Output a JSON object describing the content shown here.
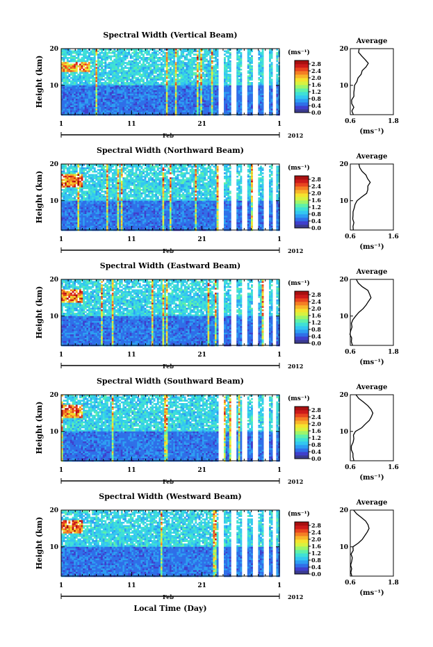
{
  "figure": {
    "xlabel": "Local Time (Day)",
    "month_label": "Feb",
    "year_label": "2012"
  },
  "colorbar": {
    "unit_label": "(ms⁻¹)",
    "ticks": [
      "2.8",
      "2.4",
      "2.0",
      "1.6",
      "1.2",
      "0.8",
      "0.4",
      "0.0"
    ],
    "range": [
      0.0,
      3.0
    ],
    "colors": [
      "#3b3b8f",
      "#3f3fcc",
      "#2f6fe8",
      "#2d9ef2",
      "#33c7f0",
      "#3fe0d6",
      "#5ff0a8",
      "#9df56a",
      "#d8f240",
      "#f5e32e",
      "#f8b52a",
      "#f47f24",
      "#e8451f",
      "#cc1a1a",
      "#a81010"
    ]
  },
  "chart_data": [
    {
      "type": "heatmap",
      "title": "Spectral Width (Vertical Beam)",
      "ylabel": "Height (km)",
      "yticks": [
        "20",
        "10"
      ],
      "xticks": [
        "1",
        "11",
        "21",
        "1"
      ],
      "xlim": [
        1,
        32
      ],
      "ylim": [
        2,
        20
      ],
      "zlim": [
        0.0,
        3.0
      ],
      "profile": {
        "title": "Average",
        "xlabel": "(ms⁻¹)",
        "xticks": [
          "0.6",
          "1.8"
        ],
        "yticks": [
          "20",
          "10"
        ],
        "xlim": [
          0.6,
          1.8
        ],
        "height": [
          2,
          3,
          4,
          5,
          6,
          7,
          8,
          9,
          10,
          11,
          12,
          13,
          14,
          15,
          16,
          17,
          18,
          19,
          20
        ],
        "value": [
          0.7,
          0.66,
          0.68,
          0.65,
          0.66,
          0.68,
          0.67,
          0.7,
          0.72,
          0.8,
          0.84,
          0.9,
          0.96,
          1.05,
          1.08,
          1.02,
          0.94,
          0.86,
          0.82
        ]
      }
    },
    {
      "type": "heatmap",
      "title": "Spectral Width (Northward Beam)",
      "ylabel": "Height (km)",
      "yticks": [
        "20",
        "10"
      ],
      "xticks": [
        "1",
        "11",
        "21",
        "1"
      ],
      "xlim": [
        1,
        32
      ],
      "ylim": [
        2,
        20
      ],
      "zlim": [
        0.0,
        3.0
      ],
      "profile": {
        "title": "Average",
        "xlabel": "(ms⁻¹)",
        "xticks": [
          "0.6",
          "1.6"
        ],
        "yticks": [
          "20",
          "10"
        ],
        "xlim": [
          0.6,
          1.6
        ],
        "height": [
          2,
          3,
          4,
          5,
          6,
          7,
          8,
          9,
          10,
          11,
          12,
          13,
          14,
          15,
          16,
          17,
          18,
          19,
          20
        ],
        "value": [
          0.68,
          0.66,
          0.67,
          0.66,
          0.67,
          0.68,
          0.69,
          0.72,
          0.76,
          0.86,
          0.96,
          1.02,
          1.0,
          1.04,
          0.98,
          0.94,
          0.88,
          0.84,
          0.8
        ]
      }
    },
    {
      "type": "heatmap",
      "title": "Spectral Width (Eastward Beam)",
      "ylabel": "Height (km)",
      "yticks": [
        "20",
        "10"
      ],
      "xticks": [
        "1",
        "11",
        "21",
        "1"
      ],
      "xlim": [
        1,
        32
      ],
      "ylim": [
        2,
        20
      ],
      "zlim": [
        0.0,
        3.0
      ],
      "profile": {
        "title": "Average",
        "xlabel": "(ms⁻¹)",
        "xticks": [
          "0.6",
          "1.8"
        ],
        "yticks": [
          "20",
          "10"
        ],
        "xlim": [
          0.6,
          1.8
        ],
        "height": [
          2,
          3,
          4,
          5,
          6,
          7,
          8,
          9,
          10,
          11,
          12,
          13,
          14,
          15,
          16,
          17,
          18,
          19,
          20
        ],
        "value": [
          0.64,
          0.62,
          0.63,
          0.62,
          0.63,
          0.64,
          0.65,
          0.68,
          0.72,
          0.84,
          0.96,
          1.04,
          1.1,
          1.18,
          1.14,
          1.06,
          0.96,
          0.84,
          0.76
        ]
      }
    },
    {
      "type": "heatmap",
      "title": "Spectral Width (Southward Beam)",
      "ylabel": "Height (km)",
      "yticks": [
        "20",
        "10"
      ],
      "xticks": [
        "1",
        "11",
        "21",
        "1"
      ],
      "xlim": [
        1,
        32
      ],
      "ylim": [
        2,
        20
      ],
      "zlim": [
        0.0,
        3.0
      ],
      "profile": {
        "title": "Average",
        "xlabel": "(ms⁻¹)",
        "xticks": [
          "0.6",
          "1.6"
        ],
        "yticks": [
          "20",
          "10"
        ],
        "xlim": [
          0.6,
          1.6
        ],
        "height": [
          2,
          3,
          4,
          5,
          6,
          7,
          8,
          9,
          10,
          11,
          12,
          13,
          14,
          15,
          16,
          17,
          18,
          19,
          20
        ],
        "value": [
          0.66,
          0.64,
          0.65,
          0.64,
          0.65,
          0.66,
          0.67,
          0.7,
          0.74,
          0.86,
          0.98,
          1.06,
          1.06,
          1.1,
          1.08,
          1.0,
          0.9,
          0.82,
          0.76
        ]
      }
    },
    {
      "type": "heatmap",
      "title": "Spectral Width (Westward Beam)",
      "ylabel": "Height (km)",
      "yticks": [
        "20",
        "10"
      ],
      "xticks": [
        "1",
        "11",
        "21",
        "1"
      ],
      "xlim": [
        1,
        32
      ],
      "ylim": [
        2,
        20
      ],
      "zlim": [
        0.0,
        3.0
      ],
      "profile": {
        "title": "Average",
        "xlabel": "(ms⁻¹)",
        "xticks": [
          "0.6",
          "1.8"
        ],
        "yticks": [
          "20",
          "10"
        ],
        "xlim": [
          0.6,
          1.8
        ],
        "height": [
          2,
          3,
          4,
          5,
          6,
          7,
          8,
          9,
          10,
          11,
          12,
          13,
          14,
          15,
          16,
          17,
          18,
          19,
          20
        ],
        "value": [
          0.64,
          0.62,
          0.63,
          0.62,
          0.63,
          0.64,
          0.65,
          0.67,
          0.7,
          0.82,
          0.94,
          1.02,
          1.06,
          1.14,
          1.12,
          1.02,
          0.92,
          0.8,
          0.72
        ]
      }
    }
  ]
}
